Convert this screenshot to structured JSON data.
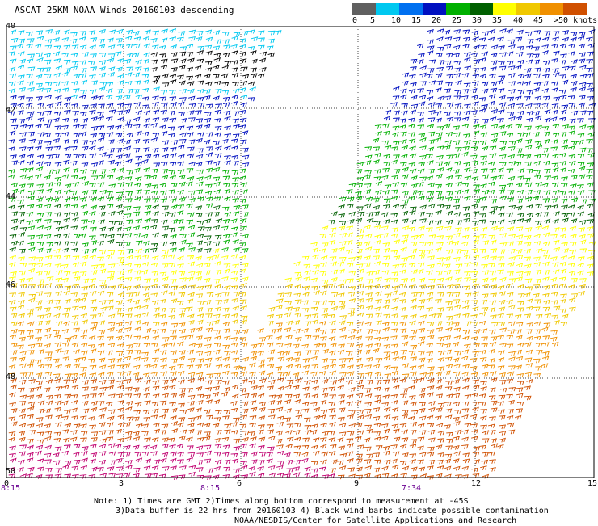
{
  "title": "ASCAT 25KM NOAA Winds 20160103 descending",
  "legend": {
    "labels": [
      "0",
      "5",
      "10",
      "15",
      "20",
      "25",
      "30",
      "35",
      "40",
      "45",
      ">50 knots"
    ],
    "colors": [
      "#606060",
      "#00c8f0",
      "#0070f0",
      "#0010c0",
      "#00b000",
      "#006000",
      "#ffff00",
      "#f0c800",
      "#f09000",
      "#d05000",
      "#b00000"
    ]
  },
  "axes": {
    "lat_labels": [
      "40",
      "42",
      "44",
      "46",
      "48",
      "50"
    ],
    "lon_labels": [
      "0",
      "3",
      "6",
      "9",
      "12",
      "15"
    ],
    "time_labels": [
      "8:15",
      "8:15",
      "7:34"
    ]
  },
  "notes": {
    "line1": "Note: 1) Times are GMT 2)Times along bottom correspond to measurement at -45S",
    "line2": "3)Data buffer is 22 hrs from 20160103 4) Black wind barbs indicate possible contamination",
    "line3": "NOAA/NESDIS/Center for Satellite Applications and Research"
  }
}
